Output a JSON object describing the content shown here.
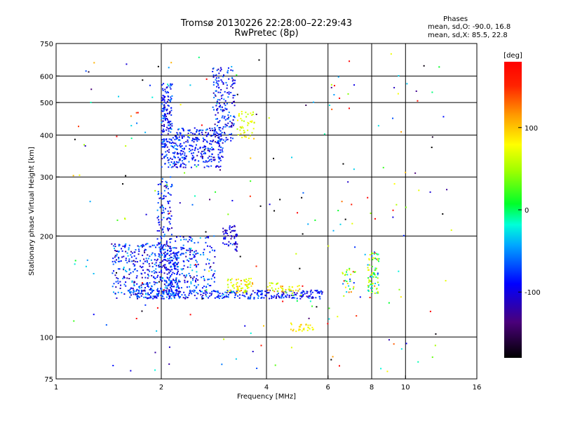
{
  "chart_data": {
    "type": "scatter",
    "title": "Tromsø 20130226 22:28:00–22:29:43",
    "subtitle": "RwPretec (8p)",
    "xlabel": "Frequency [MHz]",
    "ylabel": "Stationary phase Virtual Height [km]",
    "xscale": "log",
    "yscale": "log",
    "xlim": [
      1,
      16
    ],
    "ylim": [
      75,
      750
    ],
    "x_ticks": [
      1,
      2,
      4,
      6,
      8,
      10,
      16
    ],
    "x_gridlines": [
      2,
      4,
      6,
      8,
      10
    ],
    "y_ticks": [
      75,
      100,
      200,
      300,
      400,
      500,
      600,
      750
    ],
    "y_gridlines": [
      100,
      200,
      300,
      400,
      500,
      600
    ],
    "grid": true,
    "colorbar": {
      "label": "[deg]",
      "ticks": [
        100,
        0,
        -100
      ],
      "range": [
        -180,
        180
      ]
    },
    "stats": {
      "header": "Phases",
      "o_mode": "mean, sd,O: -90.0, 16.8",
      "x_mode": "mean, sd,X:  85.5, 22.8"
    },
    "clusters": [
      {
        "name": "E-layer trace",
        "fmin": 1.7,
        "fmax": 5.8,
        "hmin": 130,
        "hmax": 138,
        "phase": -95,
        "spread": 18,
        "n": 320
      },
      {
        "name": "F1 lower cloud",
        "fmin": 1.45,
        "fmax": 2.25,
        "hmin": 130,
        "hmax": 190,
        "phase": -95,
        "spread": 22,
        "n": 420
      },
      {
        "name": "F1 column near 2 MHz",
        "fmin": 1.95,
        "fmax": 2.15,
        "hmin": 135,
        "hmax": 300,
        "phase": -92,
        "spread": 18,
        "n": 160
      },
      {
        "name": "F2 lower trace",
        "fmin": 2.0,
        "fmax": 3.0,
        "hmin": 320,
        "hmax": 420,
        "phase": -95,
        "spread": 18,
        "n": 380
      },
      {
        "name": "F2 upper trace",
        "fmin": 2.0,
        "fmax": 2.15,
        "hmin": 420,
        "hmax": 570,
        "phase": -95,
        "spread": 18,
        "n": 110
      },
      {
        "name": "F2 cusp",
        "fmin": 2.8,
        "fmax": 3.25,
        "hmin": 380,
        "hmax": 640,
        "phase": -100,
        "spread": 22,
        "n": 170
      },
      {
        "name": "F1 mid cloud",
        "fmin": 2.1,
        "fmax": 2.85,
        "hmin": 140,
        "hmax": 200,
        "phase": -90,
        "spread": 20,
        "n": 200
      },
      {
        "name": "F1 knee",
        "fmin": 3.0,
        "fmax": 3.3,
        "hmin": 180,
        "hmax": 215,
        "phase": -110,
        "spread": 15,
        "n": 60
      },
      {
        "name": "X-mode E patch",
        "fmin": 3.1,
        "fmax": 3.7,
        "hmin": 135,
        "hmax": 150,
        "phase": 90,
        "spread": 25,
        "n": 60
      },
      {
        "name": "X-mode F patch",
        "fmin": 3.3,
        "fmax": 3.7,
        "hmin": 390,
        "hmax": 470,
        "phase": 85,
        "spread": 20,
        "n": 45
      },
      {
        "name": "X-mode low patch",
        "fmin": 4.6,
        "fmax": 5.5,
        "hmin": 104,
        "hmax": 110,
        "phase": 100,
        "spread": 12,
        "n": 30
      },
      {
        "name": "X-mode E mid",
        "fmin": 4.0,
        "fmax": 5.0,
        "hmin": 135,
        "hmax": 145,
        "phase": 90,
        "spread": 30,
        "n": 40
      },
      {
        "name": "Upper E trace",
        "fmin": 7.8,
        "fmax": 8.4,
        "hmin": 135,
        "hmax": 180,
        "phase": 20,
        "spread": 60,
        "n": 80
      },
      {
        "name": "Trace near 6.8",
        "fmin": 6.6,
        "fmax": 7.2,
        "hmin": 135,
        "hmax": 160,
        "phase": 40,
        "spread": 70,
        "n": 30
      },
      {
        "name": "Scattered",
        "fmin": 1.1,
        "fmax": 14.0,
        "hmin": 78,
        "hmax": 700,
        "phase": 0,
        "spread": 140,
        "n": 230
      }
    ]
  }
}
